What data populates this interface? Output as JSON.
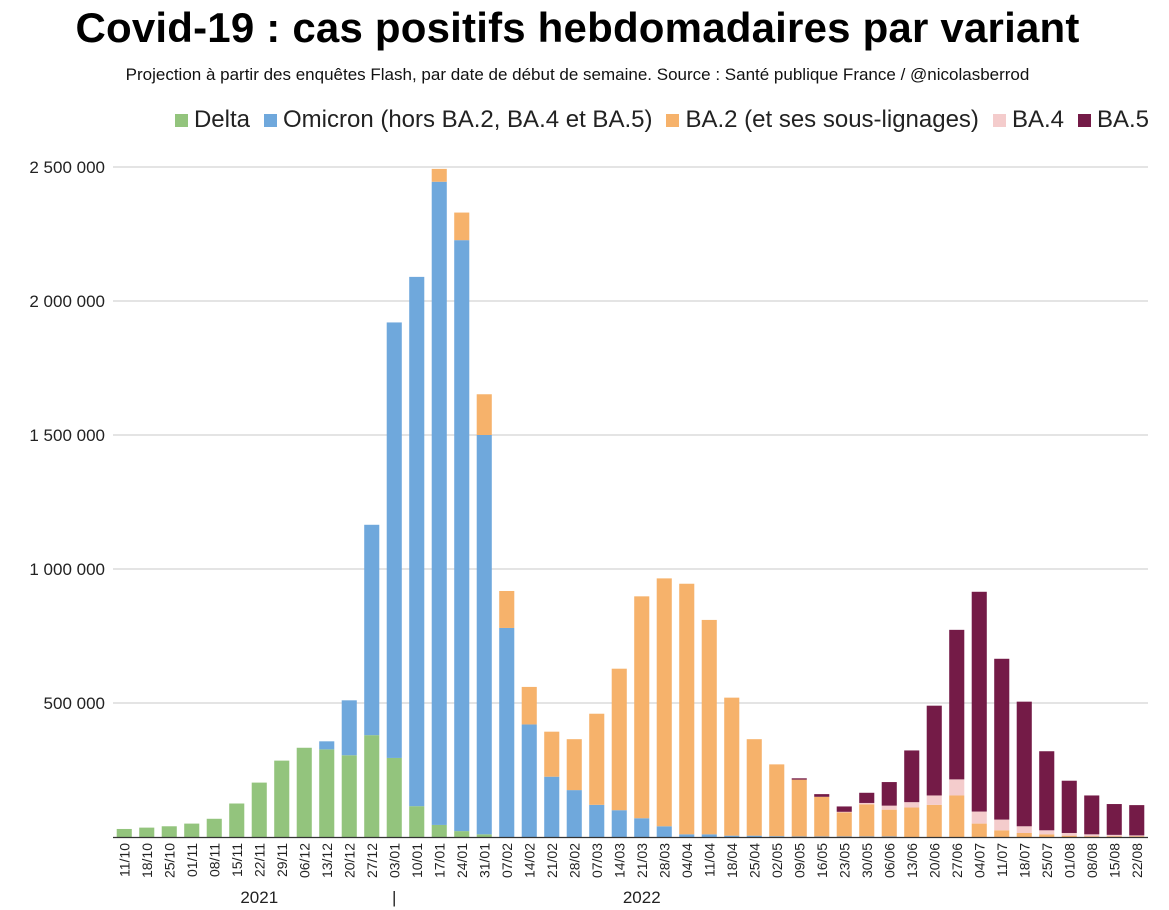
{
  "title": "Covid-19 : cas positifs hebdomadaires par variant",
  "subtitle": "Projection à partir des enquêtes Flash, par date de début de semaine. Source : Santé publique France / @nicolasberrod",
  "chart_data": {
    "type": "bar",
    "stacked": true,
    "ylim": [
      0,
      2500000
    ],
    "yticks": [
      0,
      500000,
      1000000,
      1500000,
      2000000,
      2500000
    ],
    "ytick_labels": [
      "",
      "500 000",
      "1 000 000",
      "1 500 000",
      "2 000 000",
      "2 500 000"
    ],
    "grid": true,
    "legend_position": "top-right",
    "categories": [
      "11/10",
      "18/10",
      "25/10",
      "01/11",
      "08/11",
      "15/11",
      "22/11",
      "29/11",
      "06/12",
      "13/12",
      "20/12",
      "27/12",
      "03/01",
      "10/01",
      "17/01",
      "24/01",
      "31/01",
      "07/02",
      "14/02",
      "21/02",
      "28/02",
      "07/03",
      "14/03",
      "21/03",
      "28/03",
      "04/04",
      "11/04",
      "18/04",
      "25/04",
      "02/05",
      "09/05",
      "16/05",
      "23/05",
      "30/05",
      "06/06",
      "13/06",
      "20/06",
      "27/06",
      "04/07",
      "11/07",
      "18/07",
      "25/07",
      "01/08",
      "08/08",
      "15/08",
      "22/08"
    ],
    "year_labels": [
      {
        "text": "2021",
        "at_category": "22/11"
      },
      {
        "text": "|",
        "at_category": "03/01"
      },
      {
        "text": "2022",
        "at_category": "21/03"
      }
    ],
    "series": [
      {
        "name": "Delta",
        "color": "#93c47d",
        "values": [
          30000,
          35000,
          40000,
          50000,
          68000,
          125000,
          203000,
          285000,
          333000,
          327000,
          305000,
          380000,
          295000,
          115000,
          45000,
          22000,
          10000,
          0,
          0,
          0,
          0,
          0,
          0,
          0,
          0,
          0,
          0,
          0,
          0,
          0,
          0,
          0,
          0,
          0,
          0,
          0,
          0,
          0,
          0,
          0,
          0,
          0,
          0,
          0,
          0,
          0
        ]
      },
      {
        "name": "Omicron (hors BA.2, BA.4 et BA.5)",
        "color": "#6fa8dc",
        "values": [
          0,
          0,
          0,
          0,
          0,
          0,
          0,
          0,
          0,
          30000,
          205000,
          785000,
          1625000,
          1975000,
          2400000,
          2205000,
          1490000,
          780000,
          420000,
          225000,
          175000,
          120000,
          100000,
          70000,
          40000,
          10000,
          10000,
          5000,
          5000,
          3000,
          2000,
          2000,
          2000,
          2000,
          2000,
          0,
          0,
          0,
          0,
          0,
          0,
          0,
          0,
          0,
          0,
          0
        ]
      },
      {
        "name": "BA.2 (et ses sous-lignages)",
        "color": "#f6b26b",
        "values": [
          0,
          0,
          0,
          0,
          0,
          0,
          0,
          0,
          0,
          0,
          0,
          0,
          0,
          0,
          48000,
          103000,
          152000,
          138000,
          140000,
          168000,
          190000,
          340000,
          528000,
          828000,
          925000,
          935000,
          800000,
          515000,
          360000,
          268000,
          212000,
          148000,
          90000,
          120000,
          100000,
          110000,
          120000,
          155000,
          50000,
          25000,
          15000,
          10000,
          5000,
          3000,
          3000,
          3000
        ]
      },
      {
        "name": "BA.4",
        "color": "#f4cccc",
        "values": [
          0,
          0,
          0,
          0,
          0,
          0,
          0,
          0,
          0,
          0,
          0,
          0,
          0,
          0,
          0,
          0,
          0,
          0,
          0,
          0,
          0,
          0,
          0,
          0,
          0,
          0,
          0,
          0,
          0,
          0,
          0,
          0,
          2000,
          5000,
          15000,
          20000,
          35000,
          60000,
          45000,
          40000,
          25000,
          15000,
          10000,
          7000,
          5000,
          3000
        ]
      },
      {
        "name": "BA.5",
        "color": "#741b47",
        "values": [
          0,
          0,
          0,
          0,
          0,
          0,
          0,
          0,
          0,
          0,
          0,
          0,
          0,
          0,
          0,
          0,
          0,
          0,
          0,
          0,
          0,
          0,
          0,
          0,
          0,
          0,
          0,
          0,
          0,
          0,
          5000,
          10000,
          20000,
          38000,
          88000,
          193000,
          335000,
          558000,
          820000,
          600000,
          465000,
          295000,
          195000,
          145000,
          115000,
          113000
        ]
      }
    ]
  }
}
